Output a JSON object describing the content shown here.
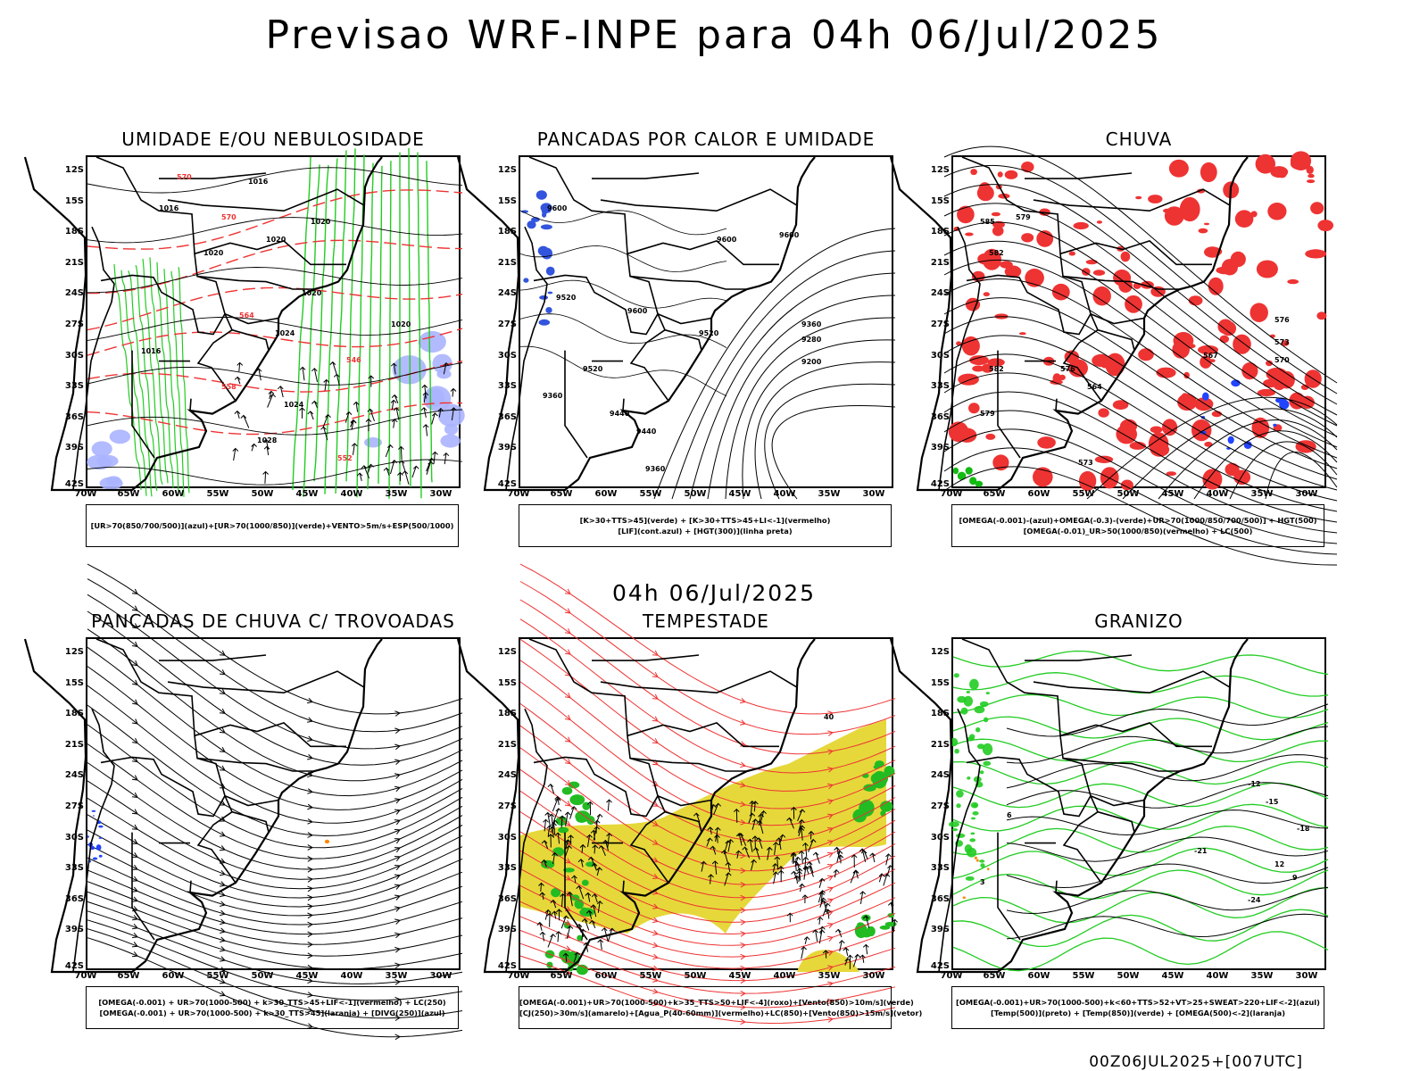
{
  "title": "Previsao WRF-INPE  para 04h 06/Jul/2025",
  "mid_title": "04h 06/Jul/2025",
  "footer": "00Z06JUL2025+[007UTC]",
  "lat_ticks": [
    "12S",
    "15S",
    "18S",
    "21S",
    "24S",
    "27S",
    "30S",
    "33S",
    "36S",
    "39S",
    "42S"
  ],
  "lon_ticks": [
    "70W",
    "65W",
    "60W",
    "55W",
    "50W",
    "45W",
    "40W",
    "35W",
    "30W"
  ],
  "panels": [
    {
      "title": "UMIDADE E/OU NEBULOSIDADE",
      "legend": [
        "[UR>70(850/700/500)](azul)+[UR>70(1000/850)](verde)+VENTO>5m/s+ESP(500/1000)"
      ],
      "labels": [
        "1016",
        "1016",
        "1020",
        "1020",
        "1020",
        "1020",
        "1024",
        "1024",
        "1028",
        "570",
        "570",
        "564",
        "558",
        "552",
        "546",
        "1020",
        "1016"
      ]
    },
    {
      "title": "PANCADAS POR CALOR E UMIDADE",
      "legend": [
        "[K>30+TTS>45](verde) + [K>30+TTS>45+LI<-1](vermelho)",
        "[LIF](cont.azul) + [HGT(300)](linha preta)"
      ],
      "labels": [
        "9600",
        "9600",
        "9600",
        "9600",
        "9520",
        "9520",
        "9520",
        "9440",
        "9360",
        "9360",
        "9280",
        "9200",
        "9440",
        "9360"
      ]
    },
    {
      "title": "CHUVA",
      "legend": [
        "[OMEGA(-0.001)-(azul)+OMEGA(-0.3)-(verde)+UR>70(1000/850/700/500)] + HGT(500)",
        "[OMEGA(-0.01)_UR>50(1000/850)(vermelho) + LC(500)"
      ],
      "labels": [
        "585",
        "582",
        "579",
        "576",
        "573",
        "570",
        "567",
        "564",
        "573",
        "576",
        "579",
        "582"
      ]
    },
    {
      "title": "PANCADAS DE CHUVA C/ TROVOADAS",
      "legend": [
        "[OMEGA(-0.001) + UR>70(1000-500) + k>30_TTS>45+LIF<-1](vermelho) + LC(250)",
        "[OMEGA(-0.001) + UR>70(1000-500) + k>30_TTS>45](laranja) + [DIVG(250)](azul)"
      ],
      "labels": []
    },
    {
      "title": "TEMPESTADE",
      "legend": [
        "[OMEGA(-0.001)+UR>70(1000-500)+k>35_TTS>50+LIF<-4](roxo)+[Vento(850)>10m/s](verde)",
        "[CJ(250)>30m/s](amarelo)+[Agua_P(40-60mm)](vermelho)+LC(850)+[Vento(850)>15m/s](vetor)"
      ],
      "labels": [
        "40"
      ]
    },
    {
      "title": "GRANIZO",
      "legend": [
        "[OMEGA(-0.001)+UR>70(1000-500)+k<60+TTS>52+VT>25+SWEAT>220+LIF<-2](azul)",
        "[Temp(500)](preto) + [Temp(850)](verde) + [OMEGA(500)<-2](laranja)"
      ],
      "labels": [
        "-12",
        "-15",
        "-18",
        "-21",
        "-24",
        "12",
        "9",
        "6",
        "3"
      ]
    }
  ],
  "colors": {
    "humidity_blue": "#aab4ff",
    "humidity_green": "#22cc22",
    "contour_red": "#ee3333",
    "rain_red": "#ee3333",
    "rain_blue": "#2244ff",
    "rain_green": "#11bb11",
    "jet_yellow": "#e6d83a",
    "wind_green": "#22bb22",
    "orange": "#ff8800"
  }
}
